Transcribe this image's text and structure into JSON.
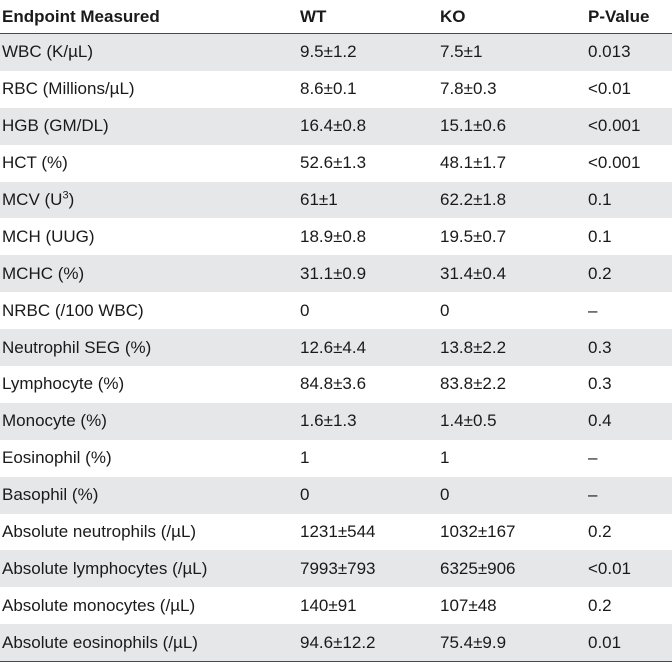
{
  "table": {
    "headers": {
      "endpoint": "Endpoint Measured",
      "wt": "WT",
      "ko": "KO",
      "pvalue": "P-Value"
    },
    "rows": [
      {
        "endpoint": "WBC (K/µL)",
        "wt": "9.5±1.2",
        "ko": "7.5±1",
        "p": "0.013"
      },
      {
        "endpoint": "RBC (Millions/µL)",
        "wt": "8.6±0.1",
        "ko": "7.8±0.3",
        "p": "<0.01"
      },
      {
        "endpoint": "HGB (GM/DL)",
        "wt": "16.4±0.8",
        "ko": "15.1±0.6",
        "p": "<0.001"
      },
      {
        "endpoint": "HCT (%)",
        "wt": "52.6±1.3",
        "ko": "48.1±1.7",
        "p": "<0.001"
      },
      {
        "endpoint": "MCV (U",
        "endpoint_sup": "3",
        "endpoint_tail": ")",
        "wt": "61±1",
        "ko": "62.2±1.8",
        "p": "0.1"
      },
      {
        "endpoint": "MCH (UUG)",
        "wt": "18.9±0.8",
        "ko": "19.5±0.7",
        "p": "0.1"
      },
      {
        "endpoint": "MCHC (%)",
        "wt": "31.1±0.9",
        "ko": "31.4±0.4",
        "p": "0.2"
      },
      {
        "endpoint": "NRBC (/100 WBC)",
        "wt": "0",
        "ko": "0",
        "p": "–"
      },
      {
        "endpoint": "Neutrophil SEG (%)",
        "wt": "12.6±4.4",
        "ko": "13.8±2.2",
        "p": "0.3"
      },
      {
        "endpoint": "Lymphocyte (%)",
        "wt": "84.8±3.6",
        "ko": "83.8±2.2",
        "p": "0.3"
      },
      {
        "endpoint": "Monocyte (%)",
        "wt": "1.6±1.3",
        "ko": "1.4±0.5",
        "p": "0.4"
      },
      {
        "endpoint": "Eosinophil (%)",
        "wt": "1",
        "ko": "1",
        "p": "–"
      },
      {
        "endpoint": "Basophil (%)",
        "wt": "0",
        "ko": "0",
        "p": "–"
      },
      {
        "endpoint": "Absolute neutrophils (/µL)",
        "wt": "1231±544",
        "ko": "1032±167",
        "p": "0.2"
      },
      {
        "endpoint": "Absolute lymphocytes (/µL)",
        "wt": "7993±793",
        "ko": "6325±906",
        "p": "<0.01"
      },
      {
        "endpoint": "Absolute monocytes (/µL)",
        "wt": "140±91",
        "ko": "107±48",
        "p": "0.2"
      },
      {
        "endpoint": "Absolute eosinophils (/µL)",
        "wt": "94.6±12.2",
        "ko": "75.4±9.9",
        "p": "0.01"
      }
    ]
  }
}
